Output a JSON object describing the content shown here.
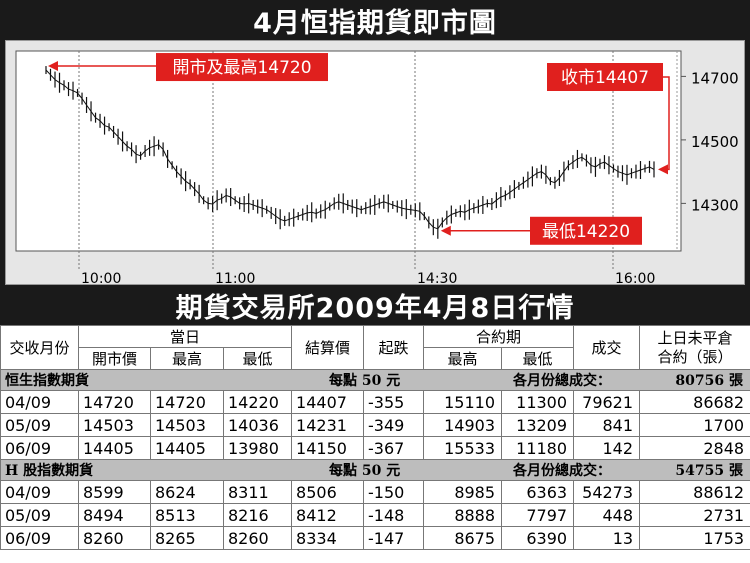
{
  "title": "4月恒指期貨即市圖",
  "chart_data": {
    "type": "line",
    "yticks": [
      14700,
      14500,
      14300
    ],
    "ylim": [
      14150,
      14780
    ],
    "xticks": [
      "10:00",
      "11:00",
      "14:30",
      "16:00"
    ],
    "annotations": {
      "open_high": "開市及最高14720",
      "close": "收市14407",
      "low": "最低14220"
    },
    "values": [
      14720,
      14705,
      14690,
      14680,
      14672,
      14660,
      14655,
      14648,
      14630,
      14610,
      14590,
      14570,
      14560,
      14545,
      14540,
      14525,
      14510,
      14495,
      14480,
      14470,
      14455,
      14450,
      14465,
      14475,
      14480,
      14485,
      14470,
      14440,
      14420,
      14400,
      14385,
      14370,
      14360,
      14345,
      14330,
      14310,
      14300,
      14298,
      14310,
      14315,
      14325,
      14320,
      14310,
      14300,
      14298,
      14300,
      14295,
      14290,
      14285,
      14280,
      14270,
      14260,
      14250,
      14245,
      14250,
      14255,
      14260,
      14265,
      14270,
      14272,
      14268,
      14275,
      14280,
      14290,
      14300,
      14305,
      14300,
      14295,
      14290,
      14285,
      14280,
      14285,
      14290,
      14295,
      14300,
      14305,
      14300,
      14295,
      14290,
      14285,
      14282,
      14280,
      14278,
      14275,
      14260,
      14240,
      14225,
      14220,
      14240,
      14255,
      14265,
      14270,
      14275,
      14272,
      14280,
      14285,
      14290,
      14295,
      14300,
      14298,
      14310,
      14320,
      14325,
      14335,
      14345,
      14355,
      14365,
      14375,
      14385,
      14395,
      14400,
      14390,
      14370,
      14365,
      14380,
      14400,
      14420,
      14430,
      14440,
      14445,
      14435,
      14420,
      14415,
      14425,
      14430,
      14420,
      14410,
      14400,
      14395,
      14390,
      14395,
      14400,
      14405,
      14410,
      14415,
      14407
    ]
  },
  "table": {
    "section_title": "期貨交易所2009年4月8日行情",
    "head": {
      "month": "交收月份",
      "today": "當日",
      "settle": "結算價",
      "change": "起跌",
      "contract": "合約期",
      "volume": "成交",
      "oi_line1": "上日未平倉",
      "oi_line2": "合約（張）",
      "open": "開市價",
      "high": "最高",
      "low": "最低",
      "c_high": "最高",
      "c_low": "最低"
    },
    "groups": [
      {
        "name": "恒生指數期貨",
        "unit": "每點 50 元",
        "total_label": "各月份總成交：",
        "total": "80756 張",
        "rows": [
          [
            "04/09",
            "14720",
            "14720",
            "14220",
            "14407",
            "-355",
            "15110",
            "11300",
            "79621",
            "86682"
          ],
          [
            "05/09",
            "14503",
            "14503",
            "14036",
            "14231",
            "-349",
            "14903",
            "13209",
            "841",
            "1700"
          ],
          [
            "06/09",
            "14405",
            "14405",
            "13980",
            "14150",
            "-367",
            "15533",
            "11180",
            "142",
            "2848"
          ]
        ]
      },
      {
        "name": "H 股指數期貨",
        "unit": "每點 50 元",
        "total_label": "各月份總成交：",
        "total": "54755 張",
        "rows": [
          [
            "04/09",
            "8599",
            "8624",
            "8311",
            "8506",
            "-150",
            "8985",
            "6363",
            "54273",
            "88612"
          ],
          [
            "05/09",
            "8494",
            "8513",
            "8216",
            "8412",
            "-148",
            "8888",
            "7797",
            "448",
            "2731"
          ],
          [
            "06/09",
            "8260",
            "8265",
            "8260",
            "8334",
            "-147",
            "8675",
            "6390",
            "13",
            "1753"
          ]
        ]
      }
    ]
  }
}
